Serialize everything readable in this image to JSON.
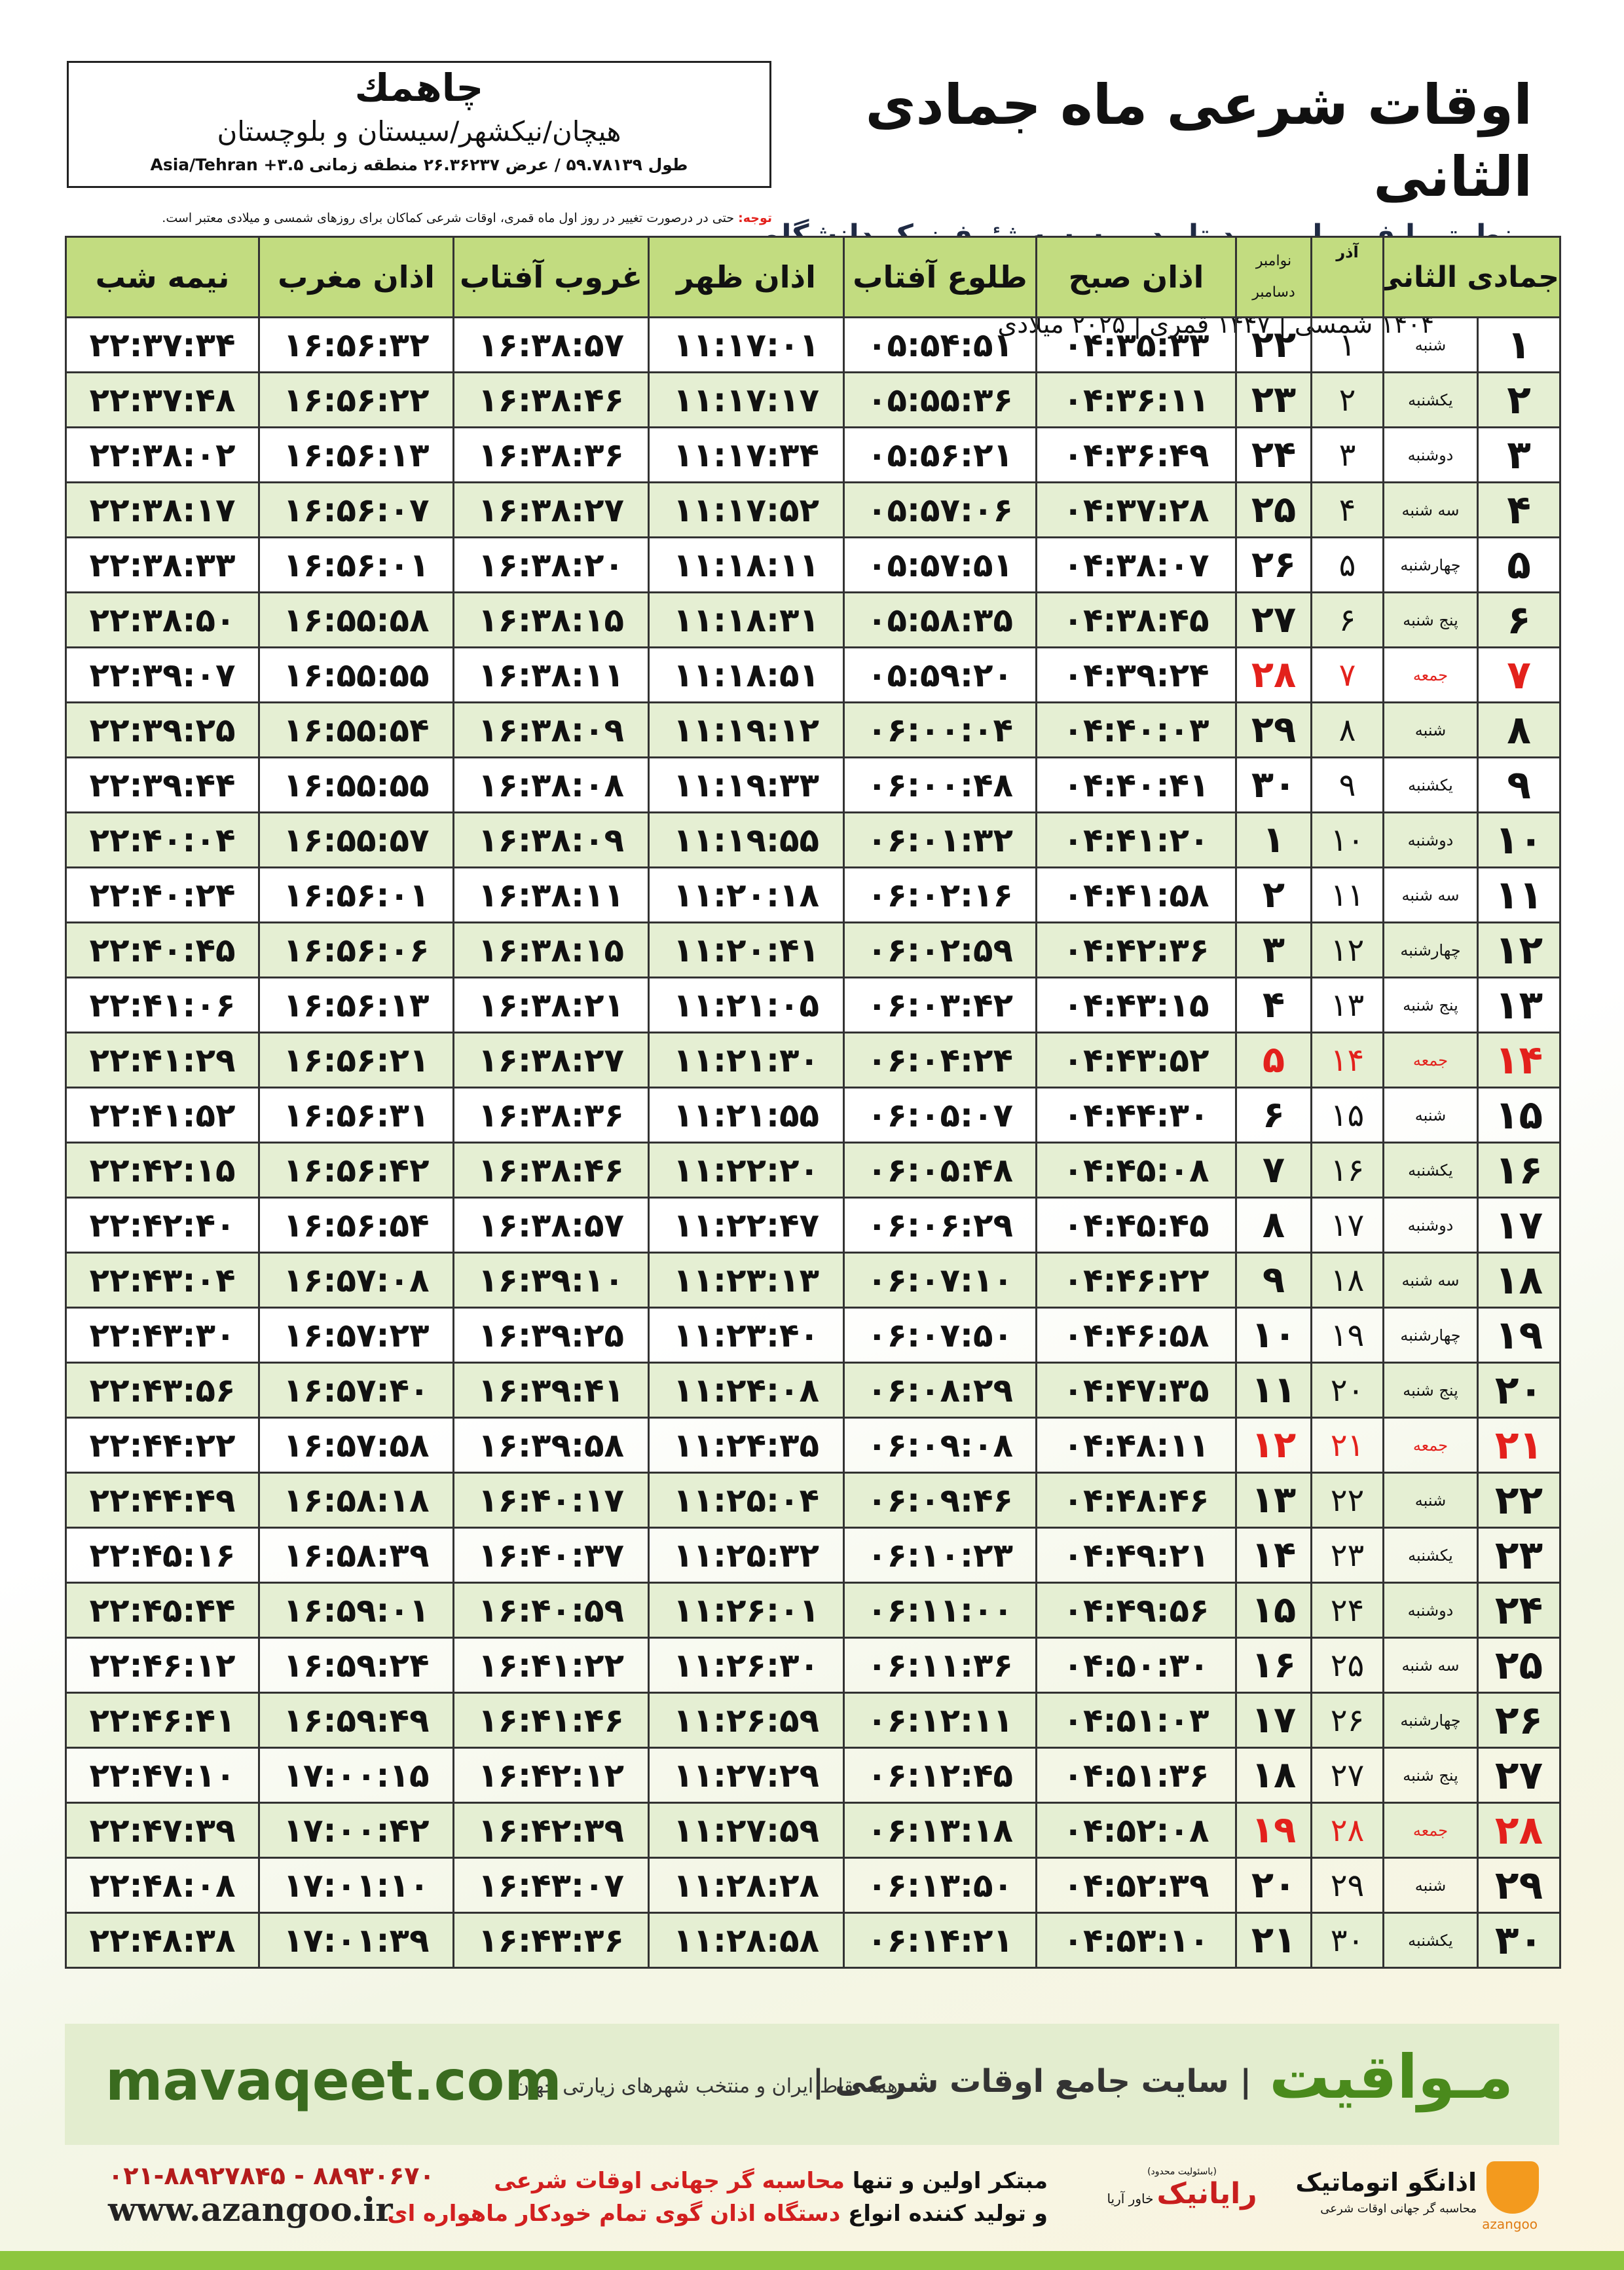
{
  "header": {
    "title": "اوقات شرعی ماه جمادی الثانی",
    "subtitle": "منطبق با فرمول مورد تایید موسسه ژئوفیزیک دانشگاه تهران",
    "dates": "۱۴۰۴ شمسی | ۱۴۴۷ قمری | ۲۰۲۵ میلادی"
  },
  "location": {
    "city": "چاهمك",
    "region": "هیچان/نیکشهر/سیستان و بلوچستان",
    "coords": "طول ۵۹.۷۸۱۳۹ / عرض ۲۶.۳۶۲۳۷ منطقه زمانی ۳.۵+ Asia/Tehran"
  },
  "note": {
    "label": "توجه:",
    "text": "حتی در درصورت تغییر در روز اول ماه قمری، اوقات شرعی کماکان برای روزهای شمسی و میلادی معتبر است."
  },
  "table": {
    "headers": {
      "hijri": "جمادی الثانی",
      "azar": "آذر",
      "gregorian": [
        "نوامبر",
        "دسامبر"
      ],
      "times": [
        "اذان صبح",
        "طلوع آفتاب",
        "اذان ظهر",
        "غروب آفتاب",
        "اذان مغرب",
        "نیمه شب"
      ]
    },
    "header_color": "#c2dc80",
    "alt_row_color": "#e5efd3",
    "rows": [
      {
        "cells": [
          "۱",
          "شنبه",
          "۱",
          "۲۲",
          "۰۴:۳۵:۳۳",
          "۰۵:۵۴:۵۱",
          "۱۱:۱۷:۰۱",
          "۱۶:۳۸:۵۷",
          "۱۶:۵۶:۳۲",
          "۲۲:۳۷:۳۴"
        ]
      },
      {
        "cells": [
          "۲",
          "یکشنبه",
          "۲",
          "۲۳",
          "۰۴:۳۶:۱۱",
          "۰۵:۵۵:۳۶",
          "۱۱:۱۷:۱۷",
          "۱۶:۳۸:۴۶",
          "۱۶:۵۶:۲۲",
          "۲۲:۳۷:۴۸"
        ]
      },
      {
        "cells": [
          "۳",
          "دوشنبه",
          "۳",
          "۲۴",
          "۰۴:۳۶:۴۹",
          "۰۵:۵۶:۲۱",
          "۱۱:۱۷:۳۴",
          "۱۶:۳۸:۳۶",
          "۱۶:۵۶:۱۳",
          "۲۲:۳۸:۰۲"
        ]
      },
      {
        "cells": [
          "۴",
          "سه شنبه",
          "۴",
          "۲۵",
          "۰۴:۳۷:۲۸",
          "۰۵:۵۷:۰۶",
          "۱۱:۱۷:۵۲",
          "۱۶:۳۸:۲۷",
          "۱۶:۵۶:۰۷",
          "۲۲:۳۸:۱۷"
        ]
      },
      {
        "cells": [
          "۵",
          "چهارشنبه",
          "۵",
          "۲۶",
          "۰۴:۳۸:۰۷",
          "۰۵:۵۷:۵۱",
          "۱۱:۱۸:۱۱",
          "۱۶:۳۸:۲۰",
          "۱۶:۵۶:۰۱",
          "۲۲:۳۸:۳۳"
        ]
      },
      {
        "cells": [
          "۶",
          "پنج شنبه",
          "۶",
          "۲۷",
          "۰۴:۳۸:۴۵",
          "۰۵:۵۸:۳۵",
          "۱۱:۱۸:۳۱",
          "۱۶:۳۸:۱۵",
          "۱۶:۵۵:۵۸",
          "۲۲:۳۸:۵۰"
        ]
      },
      {
        "cells": [
          "۷",
          "جمعه",
          "۷",
          "۲۸",
          "۰۴:۳۹:۲۴",
          "۰۵:۵۹:۲۰",
          "۱۱:۱۸:۵۱",
          "۱۶:۳۸:۱۱",
          "۱۶:۵۵:۵۵",
          "۲۲:۳۹:۰۷"
        ],
        "color": "#e3211c"
      },
      {
        "cells": [
          "۸",
          "شنبه",
          "۸",
          "۲۹",
          "۰۴:۴۰:۰۳",
          "۰۶:۰۰:۰۴",
          "۱۱:۱۹:۱۲",
          "۱۶:۳۸:۰۹",
          "۱۶:۵۵:۵۴",
          "۲۲:۳۹:۲۵"
        ]
      },
      {
        "cells": [
          "۹",
          "یکشنبه",
          "۹",
          "۳۰",
          "۰۴:۴۰:۴۱",
          "۰۶:۰۰:۴۸",
          "۱۱:۱۹:۳۳",
          "۱۶:۳۸:۰۸",
          "۱۶:۵۵:۵۵",
          "۲۲:۳۹:۴۴"
        ]
      },
      {
        "cells": [
          "۱۰",
          "دوشنبه",
          "۱۰",
          "۱",
          "۰۴:۴۱:۲۰",
          "۰۶:۰۱:۳۲",
          "۱۱:۱۹:۵۵",
          "۱۶:۳۸:۰۹",
          "۱۶:۵۵:۵۷",
          "۲۲:۴۰:۰۴"
        ]
      },
      {
        "cells": [
          "۱۱",
          "سه شنبه",
          "۱۱",
          "۲",
          "۰۴:۴۱:۵۸",
          "۰۶:۰۲:۱۶",
          "۱۱:۲۰:۱۸",
          "۱۶:۳۸:۱۱",
          "۱۶:۵۶:۰۱",
          "۲۲:۴۰:۲۴"
        ]
      },
      {
        "cells": [
          "۱۲",
          "چهارشنبه",
          "۱۲",
          "۳",
          "۰۴:۴۲:۳۶",
          "۰۶:۰۲:۵۹",
          "۱۱:۲۰:۴۱",
          "۱۶:۳۸:۱۵",
          "۱۶:۵۶:۰۶",
          "۲۲:۴۰:۴۵"
        ]
      },
      {
        "cells": [
          "۱۳",
          "پنج شنبه",
          "۱۳",
          "۴",
          "۰۴:۴۳:۱۵",
          "۰۶:۰۳:۴۲",
          "۱۱:۲۱:۰۵",
          "۱۶:۳۸:۲۱",
          "۱۶:۵۶:۱۳",
          "۲۲:۴۱:۰۶"
        ]
      },
      {
        "cells": [
          "۱۴",
          "جمعه",
          "۱۴",
          "۵",
          "۰۴:۴۳:۵۲",
          "۰۶:۰۴:۲۴",
          "۱۱:۲۱:۳۰",
          "۱۶:۳۸:۲۷",
          "۱۶:۵۶:۲۱",
          "۲۲:۴۱:۲۹"
        ],
        "color": "#e3211c"
      },
      {
        "cells": [
          "۱۵",
          "شنبه",
          "۱۵",
          "۶",
          "۰۴:۴۴:۳۰",
          "۰۶:۰۵:۰۷",
          "۱۱:۲۱:۵۵",
          "۱۶:۳۸:۳۶",
          "۱۶:۵۶:۳۱",
          "۲۲:۴۱:۵۲"
        ]
      },
      {
        "cells": [
          "۱۶",
          "یکشنبه",
          "۱۶",
          "۷",
          "۰۴:۴۵:۰۸",
          "۰۶:۰۵:۴۸",
          "۱۱:۲۲:۲۰",
          "۱۶:۳۸:۴۶",
          "۱۶:۵۶:۴۲",
          "۲۲:۴۲:۱۵"
        ]
      },
      {
        "cells": [
          "۱۷",
          "دوشنبه",
          "۱۷",
          "۸",
          "۰۴:۴۵:۴۵",
          "۰۶:۰۶:۲۹",
          "۱۱:۲۲:۴۷",
          "۱۶:۳۸:۵۷",
          "۱۶:۵۶:۵۴",
          "۲۲:۴۲:۴۰"
        ]
      },
      {
        "cells": [
          "۱۸",
          "سه شنبه",
          "۱۸",
          "۹",
          "۰۴:۴۶:۲۲",
          "۰۶:۰۷:۱۰",
          "۱۱:۲۳:۱۳",
          "۱۶:۳۹:۱۰",
          "۱۶:۵۷:۰۸",
          "۲۲:۴۳:۰۴"
        ]
      },
      {
        "cells": [
          "۱۹",
          "چهارشنبه",
          "۱۹",
          "۱۰",
          "۰۴:۴۶:۵۸",
          "۰۶:۰۷:۵۰",
          "۱۱:۲۳:۴۰",
          "۱۶:۳۹:۲۵",
          "۱۶:۵۷:۲۳",
          "۲۲:۴۳:۳۰"
        ]
      },
      {
        "cells": [
          "۲۰",
          "پنج شنبه",
          "۲۰",
          "۱۱",
          "۰۴:۴۷:۳۵",
          "۰۶:۰۸:۲۹",
          "۱۱:۲۴:۰۸",
          "۱۶:۳۹:۴۱",
          "۱۶:۵۷:۴۰",
          "۲۲:۴۳:۵۶"
        ]
      },
      {
        "cells": [
          "۲۱",
          "جمعه",
          "۲۱",
          "۱۲",
          "۰۴:۴۸:۱۱",
          "۰۶:۰۹:۰۸",
          "۱۱:۲۴:۳۵",
          "۱۶:۳۹:۵۸",
          "۱۶:۵۷:۵۸",
          "۲۲:۴۴:۲۲"
        ],
        "color": "#e3211c"
      },
      {
        "cells": [
          "۲۲",
          "شنبه",
          "۲۲",
          "۱۳",
          "۰۴:۴۸:۴۶",
          "۰۶:۰۹:۴۶",
          "۱۱:۲۵:۰۴",
          "۱۶:۴۰:۱۷",
          "۱۶:۵۸:۱۸",
          "۲۲:۴۴:۴۹"
        ]
      },
      {
        "cells": [
          "۲۳",
          "یکشنبه",
          "۲۳",
          "۱۴",
          "۰۴:۴۹:۲۱",
          "۰۶:۱۰:۲۳",
          "۱۱:۲۵:۳۲",
          "۱۶:۴۰:۳۷",
          "۱۶:۵۸:۳۹",
          "۲۲:۴۵:۱۶"
        ]
      },
      {
        "cells": [
          "۲۴",
          "دوشنبه",
          "۲۴",
          "۱۵",
          "۰۴:۴۹:۵۶",
          "۰۶:۱۱:۰۰",
          "۱۱:۲۶:۰۱",
          "۱۶:۴۰:۵۹",
          "۱۶:۵۹:۰۱",
          "۲۲:۴۵:۴۴"
        ]
      },
      {
        "cells": [
          "۲۵",
          "سه شنبه",
          "۲۵",
          "۱۶",
          "۰۴:۵۰:۳۰",
          "۰۶:۱۱:۳۶",
          "۱۱:۲۶:۳۰",
          "۱۶:۴۱:۲۲",
          "۱۶:۵۹:۲۴",
          "۲۲:۴۶:۱۲"
        ]
      },
      {
        "cells": [
          "۲۶",
          "چهارشنبه",
          "۲۶",
          "۱۷",
          "۰۴:۵۱:۰۳",
          "۰۶:۱۲:۱۱",
          "۱۱:۲۶:۵۹",
          "۱۶:۴۱:۴۶",
          "۱۶:۵۹:۴۹",
          "۲۲:۴۶:۴۱"
        ]
      },
      {
        "cells": [
          "۲۷",
          "پنج شنبه",
          "۲۷",
          "۱۸",
          "۰۴:۵۱:۳۶",
          "۰۶:۱۲:۴۵",
          "۱۱:۲۷:۲۹",
          "۱۶:۴۲:۱۲",
          "۱۷:۰۰:۱۵",
          "۲۲:۴۷:۱۰"
        ]
      },
      {
        "cells": [
          "۲۸",
          "جمعه",
          "۲۸",
          "۱۹",
          "۰۴:۵۲:۰۸",
          "۰۶:۱۳:۱۸",
          "۱۱:۲۷:۵۹",
          "۱۶:۴۲:۳۹",
          "۱۷:۰۰:۴۲",
          "۲۲:۴۷:۳۹"
        ],
        "color": "#e3211c"
      },
      {
        "cells": [
          "۲۹",
          "شنبه",
          "۲۹",
          "۲۰",
          "۰۴:۵۲:۳۹",
          "۰۶:۱۳:۵۰",
          "۱۱:۲۸:۲۸",
          "۱۶:۴۳:۰۷",
          "۱۷:۰۱:۱۰",
          "۲۲:۴۸:۰۸"
        ]
      },
      {
        "cells": [
          "۳۰",
          "یکشنبه",
          "۳۰",
          "۲۱",
          "۰۴:۵۳:۱۰",
          "۰۶:۱۴:۲۱",
          "۱۱:۲۸:۵۸",
          "۱۶:۴۳:۳۶",
          "۱۷:۰۱:۳۹",
          "۲۲:۴۸:۳۸"
        ]
      }
    ]
  },
  "banner": {
    "logo": "مـواقیت",
    "tagline": "سایت جامع اوقات شرعی",
    "coverage": "همه نقاط ایران و منتخب شهرهای زیارتی جهان",
    "url": "mavaqeet.com"
  },
  "footer": {
    "phones": "۰۲۱-۸۸۹۲۷۸۴۵ - ۸۸۹۳۰۶۷۰",
    "website": "www.azangoo.ir",
    "line1": [
      "مبتکر اولین و تنها ",
      "محاسبه گر جهانی اوقات شرعی"
    ],
    "line2": [
      "و تولید کننده انواع ",
      "دستگاه اذان گوی تمام خودکار ماهواره ای"
    ],
    "raianik": "رایانیک",
    "raianik_note": "(باسئولیت محدود)",
    "khavar": "خاور آریا",
    "azangoo": "اذانگو اتوماتیک",
    "azangoo_sub": "محاسبه گر جهانی اوقات شرعی",
    "azangoo_latin": "azangoo"
  }
}
